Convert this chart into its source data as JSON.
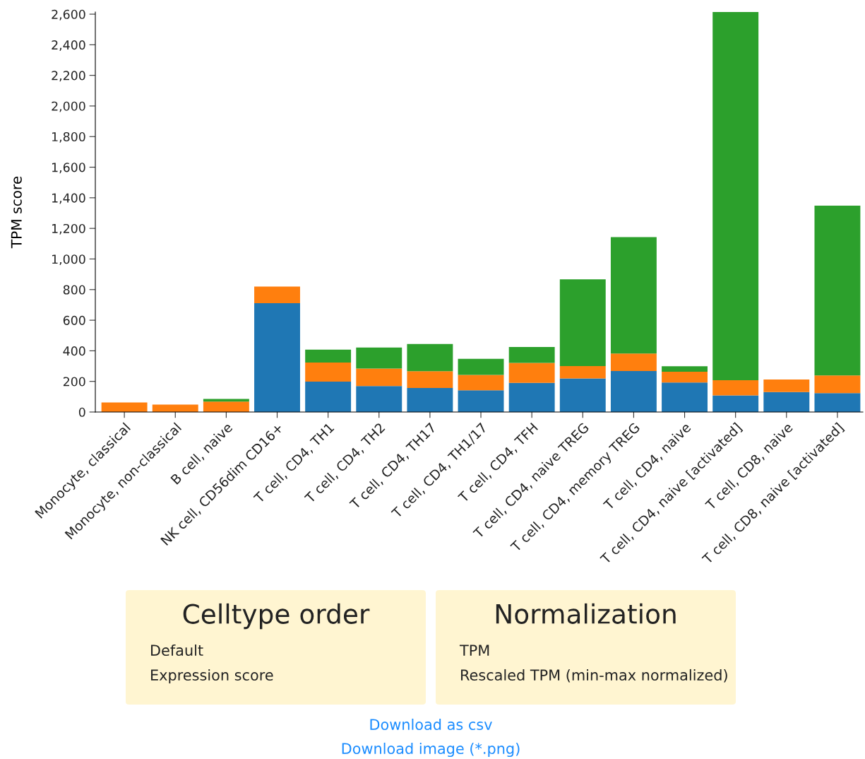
{
  "chart_data": {
    "type": "bar",
    "stacked": true,
    "ylabel": "TPM score",
    "categories": [
      "Monocyte, classical",
      "Monocyte, non-classical",
      "B cell, naive",
      "NK cell, CD56dim CD16+",
      "T cell, CD4, TH1",
      "T cell, CD4, TH2",
      "T cell, CD4, TH17",
      "T cell, CD4, TH1/17",
      "T cell, CD4, TFH",
      "T cell, CD4, naive TREG",
      "T cell, CD4, memory TREG",
      "T cell, CD4, naive",
      "T cell, CD4, naive [activated]",
      "T cell, CD8, naive",
      "T cell, CD8, naive [activated]"
    ],
    "series": [
      {
        "color": "#1f77b4",
        "values": [
          0,
          0,
          0,
          711,
          199,
          170,
          157,
          142,
          191,
          219,
          268,
          193,
          108,
          131,
          123
        ]
      },
      {
        "color": "#ff7f0e",
        "values": [
          62,
          48,
          68,
          109,
          124,
          114,
          110,
          101,
          130,
          81,
          114,
          70,
          100,
          81,
          116
        ]
      },
      {
        "color": "#2ca02c",
        "values": [
          0,
          0,
          18,
          0,
          85,
          138,
          177,
          104,
          104,
          567,
          761,
          36,
          2406,
          0,
          1110
        ]
      }
    ],
    "ylim": [
      0,
      2614
    ],
    "yticks": [
      0,
      200,
      400,
      600,
      800,
      {
        "value": 1000,
        "label": "1,000"
      },
      {
        "value": 1200,
        "label": "1,200"
      },
      {
        "value": 1400,
        "label": "1,400"
      },
      {
        "value": 1600,
        "label": "1,600"
      },
      {
        "value": 1800,
        "label": "1,800"
      },
      {
        "value": 2000,
        "label": "2,000"
      },
      {
        "value": 2200,
        "label": "2,200"
      },
      {
        "value": 2400,
        "label": "2,400"
      },
      {
        "value": 2600,
        "label": "2,600"
      }
    ],
    "grid": false,
    "legend": false,
    "annotations": [
      "Celltype order",
      "Default",
      "Expression score",
      "Normalization",
      "TPM",
      "Rescaled TPM (min-max normalized)",
      "Download as csv",
      "Download image (*.png)"
    ]
  }
}
